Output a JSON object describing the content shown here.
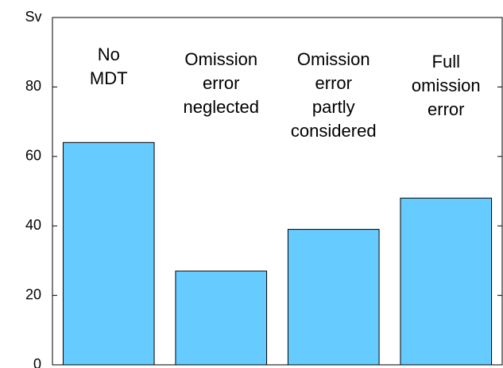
{
  "chart_data": {
    "type": "bar",
    "y_label": "Sv",
    "categories": [
      "No\nMDT",
      "Omission\nerror\nneglected",
      "Omission\nerror\npartly\nconsidered",
      "Full\nomission\nerror"
    ],
    "values": [
      64,
      27,
      39,
      48
    ],
    "color": "#66ccff",
    "ylim": [
      0,
      100
    ],
    "yticks": [
      0,
      20,
      40,
      60,
      80
    ]
  }
}
